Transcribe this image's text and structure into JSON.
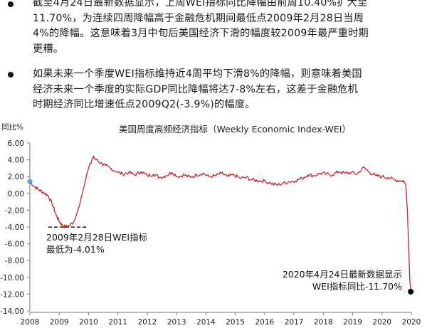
{
  "bullets": [
    "截至4月24日最新数据显示，上周WEI指标同比降幅由前周10.40%扩大至\n11.70%，为连续四周降幅高于金融危机期间最低点2009年2月28日当周\n4%的降幅。这意味着3月中旬后美国经济下滑的幅度较2009年最严重时期\n更糟。",
    "如果未来一个季度WEI指标维持近4周平均下滑8%的降幅，则意味着美国\n经济未来一个季度的实际GDP同比降幅将达7-8%左右，这差于金融危机\n时期经济同比增速低点2009Q2(-3.9%)的幅度。"
  ],
  "chart_data": {
    "type": "line",
    "title": "美国周度高频经济指标（Weekly Economic Index-WEI）",
    "ylabel": "同比%",
    "xlabel": "",
    "ylim": [
      -14,
      6
    ],
    "yticks": [
      6,
      4,
      2,
      0,
      -2,
      -4,
      -6,
      -8,
      -10,
      -12,
      -14
    ],
    "ytick_labels": [
      "6.00",
      "4.00",
      "2.00",
      "0.00",
      "-2.00",
      "-4.00",
      "-6.00",
      "-8.00",
      "-10.00",
      "-12.00",
      "-14.00"
    ],
    "xticks": [
      "2008",
      "2009",
      "2010",
      "2011",
      "2012",
      "2013",
      "2014",
      "2015",
      "2016",
      "2017",
      "2018",
      "2019",
      "2020",
      "2020"
    ],
    "x_start": 2008.0,
    "x_end": 2020.35,
    "grid": false,
    "line_color": "#c0272d",
    "series": [
      {
        "x": [
          2008.0,
          2008.15,
          2008.3,
          2008.45,
          2008.6,
          2008.75,
          2008.85,
          2008.95,
          2009.05,
          2009.16,
          2009.3,
          2009.45,
          2009.6,
          2009.75,
          2009.85,
          2009.95,
          2010.05,
          2010.15,
          2010.3,
          2010.45,
          2010.6,
          2010.8,
          2011.0,
          2011.2,
          2011.4,
          2011.6,
          2011.8,
          2012.0,
          2012.2,
          2012.4,
          2012.6,
          2012.8,
          2013.0,
          2013.2,
          2013.4,
          2013.6,
          2013.8,
          2014.0,
          2014.2,
          2014.4,
          2014.6,
          2014.8,
          2015.0,
          2015.2,
          2015.4,
          2015.6,
          2015.8,
          2016.0,
          2016.2,
          2016.4,
          2016.6,
          2016.8,
          2017.0,
          2017.2,
          2017.4,
          2017.6,
          2017.8,
          2018.0,
          2018.2,
          2018.4,
          2018.6,
          2018.8,
          2019.0,
          2019.2,
          2019.4,
          2019.6,
          2019.8,
          2020.0,
          2020.1,
          2020.17,
          2020.22,
          2020.26,
          2020.3,
          2020.33
        ],
        "values": [
          1.4,
          0.8,
          0.4,
          0.1,
          -0.3,
          -1.5,
          -2.6,
          -3.3,
          -3.8,
          -4.01,
          -3.8,
          -3.2,
          -1.5,
          0.8,
          2.4,
          3.6,
          4.3,
          4.0,
          3.6,
          3.3,
          3.0,
          2.6,
          2.3,
          2.5,
          2.2,
          2.6,
          2.1,
          2.3,
          1.9,
          2.1,
          2.5,
          2.0,
          2.2,
          1.9,
          2.2,
          2.4,
          2.0,
          2.1,
          2.4,
          2.0,
          2.2,
          1.8,
          1.9,
          1.6,
          1.5,
          1.5,
          1.2,
          1.0,
          1.2,
          1.4,
          1.5,
          1.8,
          2.2,
          2.1,
          2.4,
          2.3,
          2.2,
          2.6,
          2.4,
          2.5,
          2.3,
          3.1,
          2.5,
          2.1,
          2.0,
          1.9,
          1.6,
          1.5,
          1.5,
          1.0,
          -2.0,
          -6.0,
          -10.4,
          -11.7
        ]
      }
    ],
    "dashed_reference": {
      "value": -4.01,
      "x_from": 2008.6,
      "x_to": 2009.85
    },
    "annotations": [
      {
        "text": "2009年2月28日WEI指标\n最低为-4.01%",
        "x": 2009.16,
        "y": -4.01
      },
      {
        "text": "2020年4月24日最新数据显示\nWEI指标同比-11.70%",
        "x": 2020.33,
        "y": -11.7
      }
    ],
    "start_marker": {
      "x": 2008.0,
      "y": 1.4,
      "color": "#5b9bd5"
    },
    "end_marker": {
      "x": 2020.33,
      "y": -11.7,
      "color": "#000000"
    }
  }
}
